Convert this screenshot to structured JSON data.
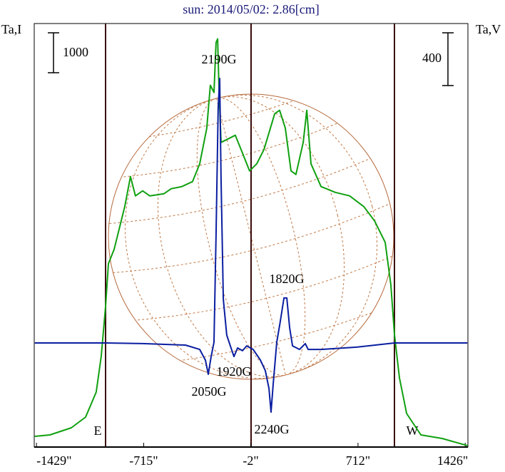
{
  "chart_data": {
    "type": "line",
    "title": "sun: 2014/05/02: 2.86[cm]",
    "ylabel": "Ta,I",
    "y2label": "Ta,V",
    "y_scale_bar": 1000,
    "y2_scale_bar": 400,
    "xlim": [
      -1444,
      1444
    ],
    "ylim": [
      0,
      10600
    ],
    "y2lim": [
      -789,
      2421
    ],
    "xticks": [
      {
        "value": -1429,
        "label": "-1429\""
      },
      {
        "value": -715,
        "label": "-715\""
      },
      {
        "value": -2,
        "label": "-2\""
      },
      {
        "value": 712,
        "label": "712\""
      },
      {
        "value": 1426,
        "label": "1426\""
      }
    ],
    "limb_labels": [
      "E",
      "W"
    ],
    "annotations": [
      "2190G",
      "1820G",
      "1920G",
      "2050G",
      "2240G"
    ],
    "series": [
      {
        "name": "I",
        "color": "#10a010",
        "x": [
          -1440,
          -1340,
          -1197,
          -1102,
          -1031,
          -998,
          -969,
          -950,
          -912,
          -841,
          -803,
          -770,
          -722,
          -675,
          -580,
          -532,
          -461,
          -390,
          -342,
          -295,
          -271,
          -247,
          -233,
          -223,
          -214,
          -200,
          -152,
          -105,
          -57,
          -10,
          38,
          86,
          157,
          190,
          228,
          266,
          299,
          347,
          371,
          399,
          466,
          561,
          656,
          751,
          822,
          893,
          931,
          955,
          988,
          1036,
          1131,
          1273,
          1440
        ],
        "values": [
          268,
          304,
          482,
          750,
          1375,
          2268,
          3518,
          4590,
          4947,
          6018,
          6768,
          6286,
          6411,
          6286,
          6340,
          6465,
          6518,
          6643,
          7090,
          7983,
          9054,
          8875,
          10126,
          10215,
          9054,
          7625,
          7715,
          7804,
          7358,
          6911,
          7090,
          7447,
          8340,
          8429,
          7983,
          6911,
          6822,
          7625,
          8429,
          7090,
          6518,
          6375,
          6286,
          6018,
          5661,
          5125,
          4054,
          2804,
          1732,
          839,
          304,
          214,
          36
        ]
      },
      {
        "name": "V",
        "color": "#0a1ea0",
        "axis": "y2",
        "x": [
          -1440,
          -969,
          -722,
          -437,
          -342,
          -304,
          -285,
          -266,
          -247,
          -233,
          -219,
          -209,
          -200,
          -185,
          -162,
          -138,
          -114,
          -90,
          -57,
          -29,
          14,
          62,
          95,
          119,
          133,
          147,
          171,
          195,
          219,
          238,
          257,
          276,
          323,
          361,
          380,
          466,
          703,
          955,
          1440
        ],
        "values": [
          0,
          0,
          -5,
          -16,
          -49,
          -130,
          -238,
          -103,
          5,
          816,
          1789,
          2005,
          1249,
          330,
          59,
          -22,
          -103,
          -38,
          -59,
          -22,
          -49,
          -130,
          -211,
          -346,
          -524,
          -319,
          5,
          168,
          341,
          341,
          114,
          -22,
          -49,
          -5,
          -49,
          -49,
          -32,
          0,
          0
        ]
      }
    ]
  }
}
